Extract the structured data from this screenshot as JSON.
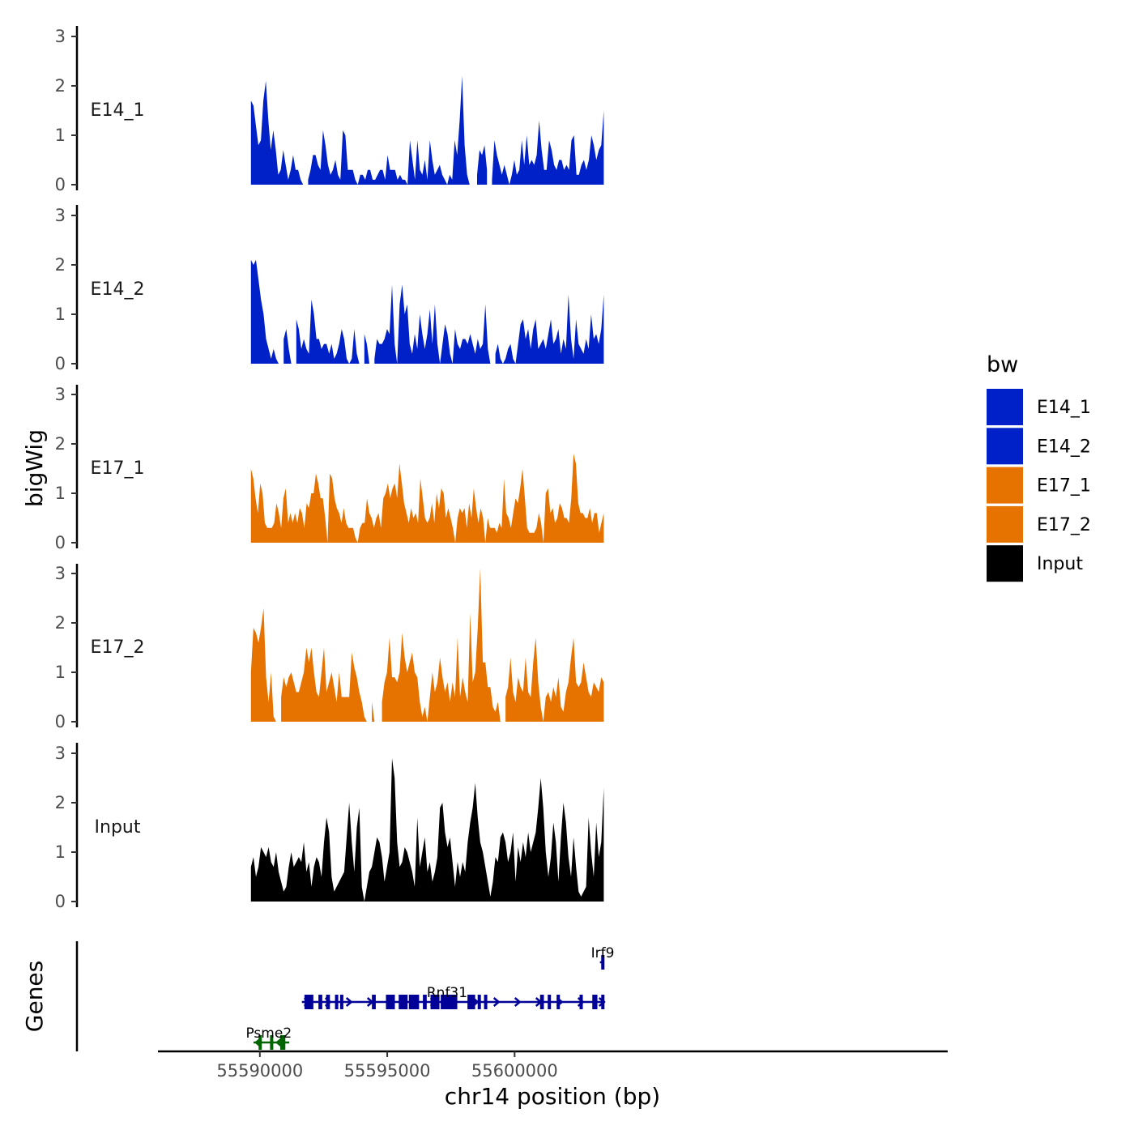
{
  "chart_data": {
    "type": "area",
    "title": "",
    "ylabel": "bigWig",
    "xlabel": "chr14 position (bp)",
    "xlim": [
      55586000,
      55617000
    ],
    "data_xrange": [
      55589650,
      55603500
    ],
    "ylim": [
      0,
      3.2
    ],
    "y_ticks": [
      0,
      1,
      2,
      3
    ],
    "x_ticks": [
      55590000,
      55595000,
      55600000
    ],
    "x_tick_labels": [
      "55590000",
      "55595000",
      "55600000"
    ],
    "tracks": [
      {
        "name": "E14_1",
        "color": "#0020C8",
        "values": [
          1.7,
          1.6,
          1.2,
          0.8,
          0.9,
          1.7,
          2.1,
          1.3,
          0.7,
          1.1,
          0.7,
          0.2,
          0.3,
          0.7,
          0.4,
          0.1,
          0.3,
          0.6,
          0.3,
          0.3,
          0.1,
          0.0,
          null,
          0.1,
          0.3,
          0.6,
          0.6,
          0.4,
          0.3,
          1.1,
          0.8,
          0.4,
          0.2,
          0.3,
          0.5,
          0.2,
          0.1,
          1.1,
          1.0,
          0.3,
          0.3,
          0.3,
          0.1,
          0.0,
          0.2,
          0.2,
          0.1,
          0.3,
          0.3,
          0.1,
          0.1,
          0.2,
          0.3,
          0.3,
          0.1,
          0.6,
          0.3,
          0.3,
          0.3,
          0.1,
          0.2,
          0.1,
          0.1,
          0.0,
          0.9,
          0.5,
          0.1,
          0.9,
          0.3,
          0.2,
          0.5,
          0.1,
          0.9,
          0.5,
          0.2,
          0.3,
          0.4,
          0.2,
          0.1,
          0.0,
          0.2,
          0.1,
          0.9,
          0.6,
          1.3,
          2.2,
          0.8,
          0.2,
          0.0,
          null,
          null,
          0.2,
          0.7,
          0.6,
          0.8,
          0.3,
          null,
          0.1,
          0.9,
          0.6,
          0.4,
          0.2,
          0.4,
          0.2,
          0.0,
          0.2,
          0.5,
          0.2,
          0.3,
          0.9,
          0.4,
          1.0,
          0.4,
          0.5,
          0.4,
          0.6,
          1.3,
          0.7,
          0.3,
          0.3,
          0.9,
          0.7,
          0.4,
          0.3,
          0.5,
          0.5,
          0.3,
          0.4,
          0.3,
          0.9,
          1.0,
          0.2,
          0.2,
          0.4,
          0.5,
          0.3,
          0.5,
          1.0,
          0.8,
          0.5,
          0.7,
          0.8,
          1.5
        ]
      },
      {
        "name": "E14_2",
        "color": "#0020C8",
        "values": [
          2.1,
          2.0,
          2.1,
          1.7,
          1.3,
          1.0,
          0.5,
          0.3,
          0.1,
          0.3,
          0.1,
          0.0,
          null,
          0.5,
          0.7,
          0.3,
          0.0,
          null,
          0.9,
          0.7,
          0.3,
          0.5,
          0.3,
          0.2,
          1.3,
          1.0,
          0.5,
          0.5,
          0.3,
          0.4,
          0.4,
          0.2,
          0.4,
          0.1,
          0.2,
          0.4,
          0.7,
          0.5,
          0.1,
          0.0,
          0.1,
          0.7,
          0.2,
          0.0,
          null,
          0.6,
          0.4,
          0.0,
          null,
          0.1,
          0.5,
          0.4,
          0.4,
          0.5,
          0.7,
          0.6,
          1.6,
          0.4,
          0.0,
          1.2,
          1.6,
          1.0,
          1.2,
          0.4,
          0.2,
          0.6,
          0.3,
          1.0,
          0.6,
          0.3,
          0.6,
          1.1,
          0.4,
          1.2,
          0.4,
          0.0,
          0.4,
          0.8,
          0.6,
          0.2,
          0.0,
          0.7,
          0.4,
          0.3,
          0.5,
          0.5,
          0.4,
          0.6,
          0.4,
          0.2,
          0.5,
          0.3,
          0.4,
          1.2,
          0.3,
          0.0,
          null,
          0.2,
          0.4,
          0.1,
          0.0,
          0.1,
          0.3,
          0.4,
          0.1,
          0.0,
          0.4,
          0.8,
          0.9,
          0.5,
          0.7,
          0.3,
          0.7,
          0.9,
          0.3,
          0.4,
          0.5,
          0.3,
          0.6,
          0.9,
          0.4,
          0.5,
          0.7,
          0.2,
          0.5,
          0.3,
          1.4,
          0.5,
          0.1,
          0.9,
          0.4,
          0.3,
          0.2,
          0.5,
          0.3,
          1.0,
          0.5,
          0.6,
          0.4,
          0.7,
          1.4
        ]
      },
      {
        "name": "E17_1",
        "color": "#E67300",
        "values": [
          1.5,
          1.3,
          0.9,
          0.6,
          1.2,
          1.0,
          0.4,
          0.3,
          0.3,
          0.3,
          0.4,
          0.8,
          0.6,
          0.3,
          0.9,
          1.1,
          0.4,
          0.6,
          0.4,
          0.6,
          0.4,
          0.7,
          0.6,
          0.3,
          0.8,
          0.7,
          1.0,
          1.0,
          1.4,
          1.2,
          0.9,
          0.9,
          0.5,
          0.0,
          1.4,
          1.3,
          0.9,
          0.7,
          0.6,
          0.4,
          0.7,
          0.4,
          0.3,
          0.3,
          0.3,
          0.1,
          0.0,
          0.3,
          0.4,
          0.4,
          0.9,
          0.6,
          0.5,
          0.3,
          0.5,
          0.6,
          0.3,
          0.9,
          1.0,
          1.2,
          0.9,
          1.1,
          1.2,
          0.9,
          1.6,
          1.2,
          0.8,
          0.6,
          0.4,
          0.7,
          0.5,
          0.6,
          0.4,
          1.3,
          0.9,
          0.5,
          0.4,
          0.5,
          0.8,
          0.4,
          1.0,
          0.7,
          1.1,
          1.0,
          0.5,
          0.7,
          0.5,
          0.3,
          0.0,
          0.5,
          0.7,
          0.6,
          0.7,
          0.3,
          0.8,
          0.5,
          1.1,
          0.7,
          0.4,
          0.7,
          0.5,
          0.0,
          0.5,
          0.3,
          0.3,
          0.3,
          0.2,
          0.4,
          0.3,
          1.3,
          0.6,
          0.5,
          0.3,
          0.6,
          0.9,
          0.8,
          1.1,
          1.5,
          0.9,
          0.3,
          0.2,
          0.2,
          0.2,
          0.3,
          0.6,
          0.4,
          0.0,
          1.0,
          1.1,
          0.6,
          0.7,
          0.4,
          0.5,
          0.8,
          0.7,
          0.5,
          0.5,
          0.4,
          0.9,
          1.8,
          1.6,
          0.8,
          0.6,
          0.6,
          0.5,
          0.5,
          0.7,
          0.4,
          0.6,
          0.6,
          0.2,
          0.4,
          0.6
        ]
      },
      {
        "name": "E17_2",
        "color": "#E67300",
        "values": [
          1.0,
          1.9,
          1.8,
          1.6,
          1.9,
          2.3,
          0.9,
          0.4,
          1.0,
          0.1,
          0.0,
          null,
          0.5,
          0.9,
          0.7,
          0.9,
          1.0,
          0.8,
          0.6,
          0.6,
          0.8,
          1.0,
          1.5,
          1.2,
          1.5,
          1.0,
          0.6,
          0.5,
          1.0,
          1.5,
          0.6,
          0.8,
          1.0,
          0.7,
          0.4,
          1.0,
          0.5,
          0.5,
          0.5,
          0.5,
          1.4,
          1.1,
          0.9,
          0.6,
          0.4,
          0.1,
          0.0,
          null,
          0.4,
          0.0,
          null,
          null,
          0.4,
          0.8,
          1.0,
          1.7,
          0.9,
          0.9,
          0.8,
          1.0,
          1.8,
          1.3,
          1.0,
          1.2,
          1.4,
          1.0,
          0.9,
          0.4,
          0.1,
          0.3,
          0.0,
          0.5,
          1.0,
          0.6,
          0.8,
          1.3,
          0.9,
          0.6,
          0.8,
          0.4,
          0.8,
          0.5,
          1.7,
          0.5,
          0.9,
          0.6,
          0.4,
          2.2,
          0.8,
          1.0,
          1.9,
          3.1,
          1.2,
          1.2,
          0.7,
          0.7,
          0.3,
          0.2,
          0.4,
          0.0,
          null,
          0.5,
          0.7,
          1.3,
          0.6,
          0.4,
          0.9,
          0.7,
          0.6,
          1.3,
          0.6,
          0.5,
          1.2,
          1.7,
          0.8,
          0.3,
          0.0,
          0.5,
          0.6,
          0.4,
          0.7,
          0.5,
          0.9,
          0.3,
          0.2,
          0.6,
          0.8,
          1.3,
          1.7,
          0.8,
          0.7,
          0.8,
          1.2,
          0.9,
          0.6,
          0.5,
          0.8,
          0.7,
          0.6,
          0.9,
          0.8
        ]
      },
      {
        "name": "Input",
        "color": "#000000",
        "values": [
          0.7,
          0.9,
          0.5,
          0.7,
          1.1,
          1.0,
          0.9,
          1.1,
          0.8,
          0.7,
          1.0,
          0.6,
          0.4,
          0.2,
          0.3,
          0.7,
          1.0,
          0.7,
          0.8,
          0.9,
          0.8,
          1.2,
          0.6,
          0.8,
          0.3,
          0.7,
          0.9,
          0.8,
          0.5,
          1.2,
          1.7,
          1.4,
          0.5,
          0.2,
          0.3,
          0.4,
          0.5,
          0.6,
          1.3,
          2.0,
          1.2,
          0.6,
          1.5,
          1.9,
          0.3,
          0.0,
          0.3,
          0.6,
          0.7,
          1.0,
          1.3,
          1.2,
          0.9,
          0.4,
          0.7,
          1.0,
          2.9,
          2.5,
          1.2,
          0.7,
          0.8,
          1.1,
          1.0,
          0.8,
          0.6,
          0.3,
          1.7,
          0.7,
          1.0,
          1.3,
          0.6,
          0.8,
          0.4,
          0.6,
          0.9,
          1.9,
          2.0,
          1.4,
          1.1,
          1.3,
          0.8,
          0.3,
          0.8,
          0.5,
          0.8,
          0.6,
          1.2,
          1.6,
          1.9,
          2.4,
          1.7,
          1.2,
          1.0,
          0.7,
          0.4,
          0.1,
          0.4,
          0.9,
          0.8,
          1.3,
          1.4,
          1.2,
          0.8,
          1.0,
          1.4,
          0.4,
          1.1,
          0.8,
          1.2,
          0.9,
          1.4,
          1.0,
          1.2,
          1.4,
          1.9,
          2.5,
          1.9,
          1.0,
          0.5,
          0.9,
          1.6,
          1.2,
          0.4,
          1.3,
          2.0,
          1.6,
          0.9,
          0.5,
          1.3,
          0.7,
          0.2,
          0.1,
          0.2,
          0.3,
          1.7,
          1.0,
          0.5,
          1.6,
          0.9,
          1.2,
          2.3
        ]
      }
    ],
    "legend": {
      "title": "bw",
      "position": "right",
      "entries": [
        {
          "label": "E14_1",
          "color": "#0020C8"
        },
        {
          "label": "E14_2",
          "color": "#0020C8"
        },
        {
          "label": "E17_1",
          "color": "#E67300"
        },
        {
          "label": "E17_2",
          "color": "#E67300"
        },
        {
          "label": "Input",
          "color": "#000000"
        }
      ]
    },
    "genes_track": {
      "ylabel": "Genes",
      "genes": [
        {
          "name": "Irf9",
          "strand": "+",
          "color": "#000099",
          "start": 55603350,
          "end": 55603520,
          "exons": [
            [
              55603400,
              55603520
            ]
          ],
          "row": 0
        },
        {
          "name": "Rnf31",
          "strand": "+",
          "color": "#000099",
          "start": 55591650,
          "end": 55603550,
          "exons": [
            [
              55591750,
              55592100
            ],
            [
              55592300,
              55592450
            ],
            [
              55592600,
              55592750
            ],
            [
              55592950,
              55593050
            ],
            [
              55593150,
              55593250
            ],
            [
              55594400,
              55594550
            ],
            [
              55594950,
              55595300
            ],
            [
              55595450,
              55595800
            ],
            [
              55595850,
              55596250
            ],
            [
              55596400,
              55596550
            ],
            [
              55596700,
              55597050
            ],
            [
              55597100,
              55597750
            ],
            [
              55598150,
              55598450
            ],
            [
              55598550,
              55598650
            ],
            [
              55598800,
              55598900
            ],
            [
              55601000,
              55601150
            ],
            [
              55601300,
              55601400
            ],
            [
              55601650,
              55601750
            ],
            [
              55602550,
              55602650
            ],
            [
              55603050,
              55603250
            ],
            [
              55603400,
              55603500
            ]
          ],
          "row": 1
        },
        {
          "name": "Psme2",
          "strand": "-",
          "color": "#006400",
          "start": 55589750,
          "end": 55591150,
          "exons": [
            [
              55589950,
              55590050
            ],
            [
              55590400,
              55590500
            ],
            [
              55590800,
              55591000
            ]
          ],
          "row": 2
        }
      ]
    }
  }
}
